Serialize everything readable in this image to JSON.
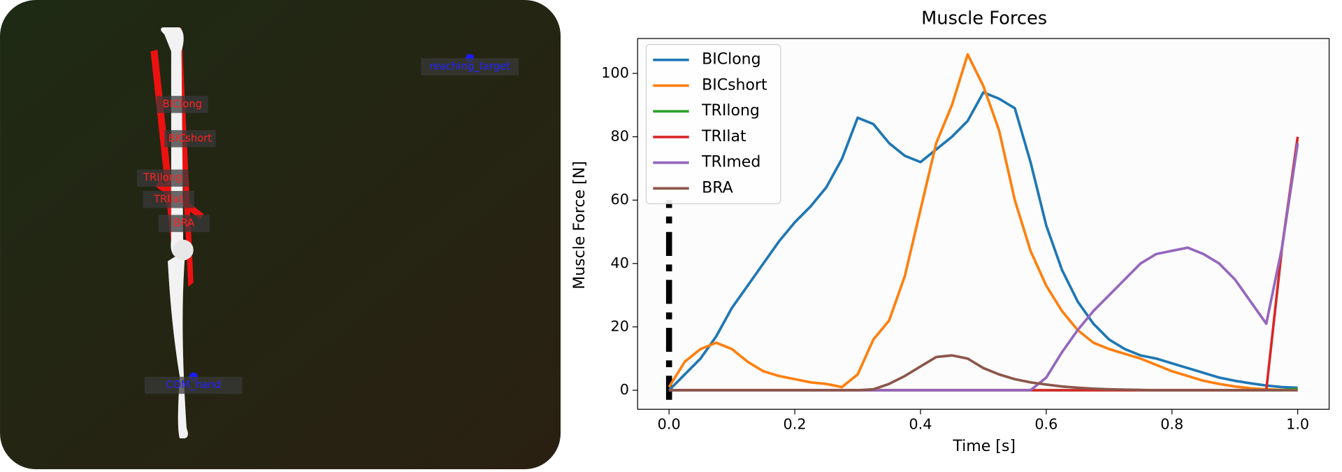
{
  "scene": {
    "muscle_labels": [
      "BIClong",
      "BICshort",
      "TRIlong",
      "TRIlat",
      "BRA"
    ],
    "markers": [
      "reaching_target",
      "COM_hand"
    ]
  },
  "chart_data": {
    "type": "line",
    "title": "Muscle Forces",
    "xlabel": "Time [s]",
    "ylabel": "Muscle Force [N]",
    "x": [
      0,
      0.025,
      0.05,
      0.075,
      0.1,
      0.125,
      0.15,
      0.175,
      0.2,
      0.225,
      0.25,
      0.275,
      0.3,
      0.325,
      0.35,
      0.375,
      0.4,
      0.425,
      0.45,
      0.475,
      0.5,
      0.525,
      0.55,
      0.575,
      0.6,
      0.625,
      0.65,
      0.675,
      0.7,
      0.725,
      0.75,
      0.775,
      0.8,
      0.825,
      0.85,
      0.875,
      0.9,
      0.925,
      0.95,
      0.975,
      1.0
    ],
    "series": [
      {
        "name": "BIClong",
        "color": "#1f77b4",
        "values": [
          0,
          5,
          10,
          17,
          26,
          33,
          40,
          47,
          53,
          58,
          64,
          73,
          86,
          84,
          78,
          74,
          72,
          76,
          80,
          85,
          94,
          92,
          89,
          72,
          52,
          38,
          28,
          21,
          16,
          13,
          11,
          10,
          8.5,
          7,
          5.5,
          4,
          3,
          2.2,
          1.5,
          1,
          0.8
        ]
      },
      {
        "name": "BICshort",
        "color": "#ff7f0e",
        "values": [
          1,
          9,
          13,
          15,
          13,
          9,
          6,
          4.5,
          3.5,
          2.5,
          2,
          1,
          5,
          16,
          22,
          36,
          57,
          78,
          90,
          106,
          96,
          82,
          60,
          44,
          33,
          25,
          19,
          15,
          13,
          11.5,
          10,
          8,
          6,
          4.5,
          3,
          2,
          1.2,
          0.6,
          0.3,
          0.1,
          0
        ]
      },
      {
        "name": "TRIlong",
        "color": "#2ca02c",
        "values": [
          0,
          0,
          0,
          0,
          0,
          0,
          0,
          0,
          0,
          0,
          0,
          0,
          0,
          0,
          0,
          0,
          0,
          0,
          0,
          0,
          0,
          0,
          0,
          0,
          0,
          0,
          0,
          0,
          0,
          0,
          0,
          0,
          0,
          0,
          0,
          0,
          0,
          0,
          0,
          0,
          0.5
        ]
      },
      {
        "name": "TRIlat",
        "color": "#d62728",
        "values": [
          0,
          0,
          0,
          0,
          0,
          0,
          0,
          0,
          0,
          0,
          0,
          0,
          0,
          0,
          0,
          0,
          0,
          0,
          0,
          0,
          0,
          0,
          0,
          0,
          0,
          0,
          0,
          0,
          0,
          0,
          0,
          0,
          0,
          0,
          0,
          0,
          0,
          0,
          0,
          45,
          80
        ]
      },
      {
        "name": "TRImed",
        "color": "#9467bd",
        "values": [
          0,
          0,
          0,
          0,
          0,
          0,
          0,
          0,
          0,
          0,
          0,
          0,
          0,
          0,
          0,
          0,
          0,
          0,
          0,
          0,
          0,
          0,
          0,
          0,
          4,
          12,
          19,
          25,
          30,
          35,
          40,
          43,
          44,
          45,
          43,
          40,
          35,
          28,
          21,
          45,
          78
        ]
      },
      {
        "name": "BRA",
        "color": "#8c564b",
        "values": [
          0,
          0,
          0,
          0,
          0,
          0,
          0,
          0,
          0,
          0,
          0,
          0,
          0,
          0.3,
          2,
          4.5,
          7.5,
          10.5,
          11,
          10,
          7,
          5,
          3.5,
          2.5,
          1.8,
          1.2,
          0.8,
          0.5,
          0.3,
          0.2,
          0.1,
          0,
          0,
          0,
          0,
          0,
          0,
          0,
          0,
          0,
          0
        ]
      }
    ],
    "xlim": [
      -0.05,
      1.05
    ],
    "ylim": [
      -6,
      111
    ],
    "xticks": [
      {
        "value": 0,
        "label": "0.0"
      },
      0.2,
      0.4,
      0.6,
      0.8,
      {
        "value": 1,
        "label": "1.0"
      }
    ],
    "yticks": [
      0,
      20,
      40,
      60,
      80,
      100
    ],
    "vline": {
      "x": 0,
      "y": [
        -3,
        60
      ],
      "color": "#000000"
    },
    "legend": "upper left"
  }
}
